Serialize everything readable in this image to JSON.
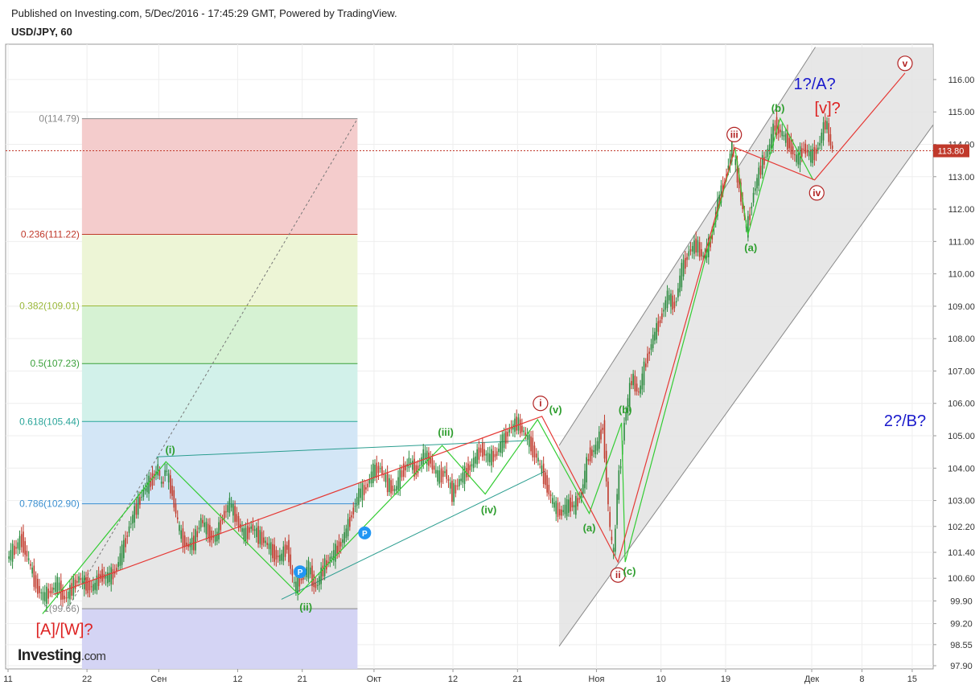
{
  "header": {
    "published": "Published on Investing.com, 5/Dec/2016 - 17:45:29 GMT, Powered by TradingView.",
    "symbol": "USD/JPY, 60"
  },
  "logo": {
    "brand": "Investing",
    "suffix": ".com"
  },
  "chart_data": {
    "type": "line",
    "title": "USD/JPY, 60",
    "y_axis": {
      "ticks": [
        "97.90",
        "98.55",
        "99.20",
        "99.90",
        "100.60",
        "101.40",
        "102.20",
        "103.00",
        "104.00",
        "105.00",
        "106.00",
        "107.00",
        "108.00",
        "109.00",
        "110.00",
        "111.00",
        "112.00",
        "113.00",
        "114.00",
        "115.00",
        "116.00"
      ],
      "ylim": [
        97.9,
        116.5
      ],
      "last_price": "113.80"
    },
    "x_axis": {
      "ticks": [
        {
          "label": "11",
          "day": 0
        },
        {
          "label": "22",
          "day": 11
        },
        {
          "label": "Сен",
          "day": 21
        },
        {
          "label": "12",
          "day": 32
        },
        {
          "label": "21",
          "day": 41
        },
        {
          "label": "Окт",
          "day": 51
        },
        {
          "label": "12",
          "day": 62
        },
        {
          "label": "21",
          "day": 71
        },
        {
          "label": "Ноя",
          "day": 82
        },
        {
          "label": "10",
          "day": 91
        },
        {
          "label": "19",
          "day": 100
        },
        {
          "label": "Дек",
          "day": 112
        },
        {
          "label": "8",
          "day": 119
        },
        {
          "label": "15",
          "day": 126
        }
      ]
    },
    "price_path": [
      [
        0,
        101.2
      ],
      [
        2,
        101.8
      ],
      [
        3,
        101.1
      ],
      [
        4,
        100.4
      ],
      [
        5,
        100.0
      ],
      [
        6,
        100.2
      ],
      [
        7,
        100.4
      ],
      [
        8,
        99.95
      ],
      [
        9,
        100.3
      ],
      [
        10,
        100.6
      ],
      [
        11,
        100.4
      ],
      [
        12,
        100.3
      ],
      [
        13,
        100.7
      ],
      [
        14,
        100.6
      ],
      [
        15,
        100.8
      ],
      [
        16,
        101.4
      ],
      [
        17,
        102.2
      ],
      [
        18,
        102.8
      ],
      [
        19,
        103.3
      ],
      [
        20,
        103.6
      ],
      [
        21,
        104.0
      ],
      [
        21.5,
        103.4
      ],
      [
        22,
        104.0
      ],
      [
        23,
        103.2
      ],
      [
        24,
        102.0
      ],
      [
        25,
        101.6
      ],
      [
        26,
        101.7
      ],
      [
        27,
        102.4
      ],
      [
        28,
        102.0
      ],
      [
        29,
        101.8
      ],
      [
        30,
        102.5
      ],
      [
        31,
        102.9
      ],
      [
        32,
        102.4
      ],
      [
        33,
        101.9
      ],
      [
        34,
        102.2
      ],
      [
        35,
        101.9
      ],
      [
        36,
        101.7
      ],
      [
        37,
        101.4
      ],
      [
        38,
        101.2
      ],
      [
        39,
        101.6
      ],
      [
        40,
        100.3
      ],
      [
        41,
        100.6
      ],
      [
        42,
        100.9
      ],
      [
        43,
        100.3
      ],
      [
        44,
        100.9
      ],
      [
        45,
        101.2
      ],
      [
        46,
        101.5
      ],
      [
        47,
        101.9
      ],
      [
        48,
        102.6
      ],
      [
        49,
        103.2
      ],
      [
        50,
        103.4
      ],
      [
        51,
        103.9
      ],
      [
        52,
        104.0
      ],
      [
        53,
        103.5
      ],
      [
        54,
        103.3
      ],
      [
        55,
        103.9
      ],
      [
        56,
        104.2
      ],
      [
        57,
        103.9
      ],
      [
        58,
        104.4
      ],
      [
        59,
        104.2
      ],
      [
        60,
        103.7
      ],
      [
        61,
        103.9
      ],
      [
        62,
        103.2
      ],
      [
        63,
        103.6
      ],
      [
        64,
        103.9
      ],
      [
        65,
        104.2
      ],
      [
        66,
        104.6
      ],
      [
        67,
        104.3
      ],
      [
        68,
        104.4
      ],
      [
        69,
        104.8
      ],
      [
        70,
        105.2
      ],
      [
        71,
        105.4
      ],
      [
        72,
        105.1
      ],
      [
        73,
        104.7
      ],
      [
        74,
        104.2
      ],
      [
        75,
        103.6
      ],
      [
        76,
        102.9
      ],
      [
        77,
        102.6
      ],
      [
        78,
        102.8
      ],
      [
        78.5,
        102.9
      ],
      [
        79,
        102.8
      ],
      [
        80,
        103.2
      ],
      [
        81,
        104.4
      ],
      [
        82,
        104.6
      ],
      [
        83,
        105.3
      ],
      [
        84,
        102.0
      ],
      [
        84.5,
        101.3
      ],
      [
        85,
        103.2
      ],
      [
        86,
        105.4
      ],
      [
        87,
        106.8
      ],
      [
        88,
        106.3
      ],
      [
        89,
        107.3
      ],
      [
        90,
        108.0
      ],
      [
        91,
        108.6
      ],
      [
        92,
        109.3
      ],
      [
        93,
        109.0
      ],
      [
        94,
        110.1
      ],
      [
        95,
        110.7
      ],
      [
        96,
        110.9
      ],
      [
        97,
        110.5
      ],
      [
        98,
        111.0
      ],
      [
        99,
        112.2
      ],
      [
        100,
        112.9
      ],
      [
        101,
        113.9
      ],
      [
        102,
        112.7
      ],
      [
        103,
        111.3
      ],
      [
        104,
        112.5
      ],
      [
        105,
        113.3
      ],
      [
        106,
        113.8
      ],
      [
        107,
        114.6
      ],
      [
        108,
        114.3
      ],
      [
        109,
        114.0
      ],
      [
        110,
        113.5
      ],
      [
        111,
        113.9
      ],
      [
        112,
        113.6
      ],
      [
        113,
        113.9
      ],
      [
        114,
        114.7
      ],
      [
        115,
        113.8
      ]
    ],
    "fibonacci": {
      "levels": [
        {
          "label": "0(114.79)",
          "value": 114.79,
          "color": "#888888",
          "fill": "#f4cccc"
        },
        {
          "label": "0.236(111.22)",
          "value": 111.22,
          "color": "#c0392b",
          "fill": "#edf5d6"
        },
        {
          "label": "0.382(109.01)",
          "value": 109.01,
          "color": "#9ab83a",
          "fill": "#d6f2d3"
        },
        {
          "label": "0.5(107.23)",
          "value": 107.23,
          "color": "#3aa03a",
          "fill": "#d2f1ea"
        },
        {
          "label": "0.618(105.44)",
          "value": 105.44,
          "color": "#2aa59a",
          "fill": "#d3e6f6"
        },
        {
          "label": "0.786(102.90)",
          "value": 102.9,
          "color": "#3b8fd0",
          "fill": "#e6e6e6"
        },
        {
          "label": "1(99.66)",
          "value": 99.66,
          "color": "#888888",
          "fill": "#d4d4f4"
        }
      ]
    },
    "annotations": {
      "wave_1_A": "1?/A?",
      "wave_v_bracket": "[v]?",
      "wave_2_B": "2?/B?",
      "wave_A_W": "[A]/[W]?",
      "circled_i": "i",
      "circled_ii": "ii",
      "circled_iii": "iii",
      "circled_iv": "iv",
      "circled_v": "v",
      "minor_i": "(i)",
      "minor_ii": "(ii)",
      "minor_iii": "(iii)",
      "minor_iv": "(iv)",
      "minor_v": "(v)",
      "sub_a_1": "(a)",
      "sub_b_1": "(b)",
      "sub_c_1": "(c)",
      "sub_a_2": "(a)",
      "sub_b_2": "(b)",
      "pivot_marker": "P"
    },
    "colors": {
      "candle_up": "#2b8a3e",
      "candle_down": "#c0392b",
      "red_wave": "#e53935",
      "green_wave": "#33cc33",
      "teal_line": "#2a9d8f",
      "channel_fill": "#e3e3e3",
      "price_label_bg": "#c0392b"
    }
  }
}
